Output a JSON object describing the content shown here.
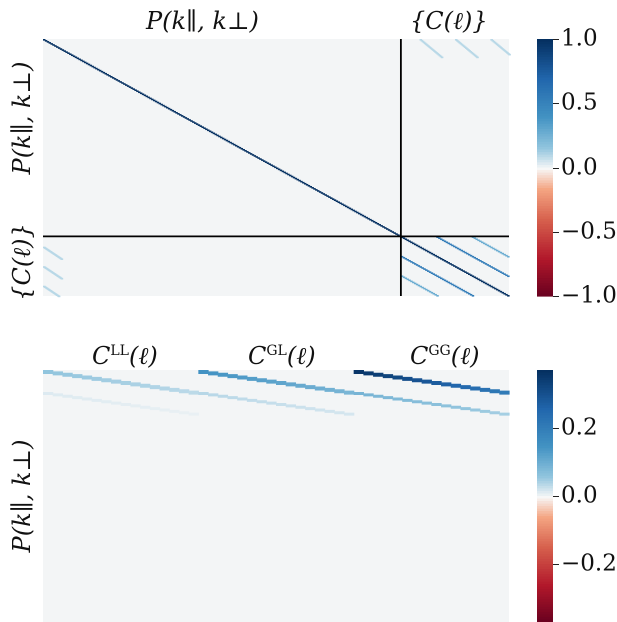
{
  "chart_data": [
    {
      "type": "heatmap",
      "title": "",
      "top_labels": [
        "P(k∥, k⊥)",
        "{C(ℓ)}"
      ],
      "left_labels": [
        "P(k∥, k⊥)",
        "{C(ℓ)}"
      ],
      "colormap": "RdBu",
      "vmin": -1.0,
      "vmax": 1.0,
      "colorbar_ticks": [
        "1.0",
        "0.5",
        "0.0",
        "−0.5",
        "−1.0"
      ],
      "colorbar_tick_values": [
        1.0,
        0.5,
        0.0,
        -0.5,
        -1.0
      ],
      "matrix_size": 250,
      "block_split": 192,
      "blocks": {
        "P_P": {
          "diagonal": 1.0,
          "off_diagonal": 0.0
        },
        "C_C": {
          "diagonal": 1.0,
          "bands": [
            {
              "offset": 0,
              "value": 1.0
            },
            {
              "offset": 19,
              "value": 0.55
            },
            {
              "offset": 38,
              "value": 0.28
            },
            {
              "offset": -19,
              "value": 0.55
            },
            {
              "offset": -38,
              "value": 0.28
            }
          ]
        },
        "P_C": {
          "band_value": 0.1
        }
      },
      "separator_lines": true
    },
    {
      "type": "heatmap",
      "title": "",
      "top_labels": [
        "C^LL(ℓ)",
        "C^GL(ℓ)",
        "C^GG(ℓ)"
      ],
      "left_labels": [
        "P(k∥, k⊥)"
      ],
      "colormap": "RdBu",
      "vmin": -0.37,
      "vmax": 0.37,
      "colorbar_ticks": [
        "0.2",
        "0.0",
        "−0.2"
      ],
      "colorbar_tick_values": [
        0.2,
        0.0,
        -0.2
      ],
      "segments": [
        {
          "name": "C^LL(ℓ)",
          "peak": 0.06
        },
        {
          "name": "C^GL(ℓ)",
          "peak": 0.15
        },
        {
          "name": "C^GG(ℓ)",
          "peak": 0.36
        }
      ]
    }
  ],
  "labels": {
    "top1_a": "P(k∥, k⊥)",
    "top1_b": "{C(ℓ)}",
    "left1_a": "P(k∥, k⊥)",
    "left1_b": "{C(ℓ)}",
    "top2_a_base": "C",
    "top2_a_sup": "LL",
    "top2_a_tail": "(ℓ)",
    "top2_b_base": "C",
    "top2_b_sup": "GL",
    "top2_b_tail": "(ℓ)",
    "top2_c_base": "C",
    "top2_c_sup": "GG",
    "top2_c_tail": "(ℓ)",
    "left2": "P(k∥, k⊥)"
  }
}
